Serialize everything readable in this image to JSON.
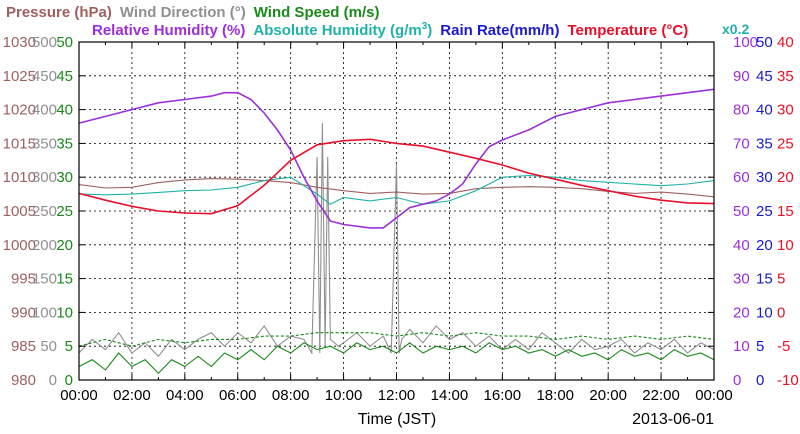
{
  "header": {
    "row1": [
      {
        "text": "Pressure (hPa)",
        "color": "#a06060"
      },
      {
        "text": "Wind Direction (°)",
        "color": "#909090"
      },
      {
        "text": "Wind Speed (m/s)",
        "color": "#1a8a1a"
      }
    ],
    "row2": [
      {
        "text": "Relative Humidity (%)",
        "color": "#9b30d9"
      },
      {
        "text": "Absolute Humidity (g/m",
        "sup": "3",
        "tail": ")",
        "color": "#20b2aa"
      },
      {
        "text": "Rain Rate(mm/h)",
        "color": "#1a1ad0"
      },
      {
        "text": "Temperature (°C)",
        "color": "#e8102a"
      }
    ],
    "scale_note": {
      "text": "x0.2",
      "color": "#20b2aa"
    }
  },
  "footer": {
    "xlabel": "Time (JST)",
    "date": "2013-06-01"
  },
  "chart_data": {
    "type": "line",
    "x_ticks": [
      "00:00",
      "02:00",
      "04:00",
      "06:00",
      "08:00",
      "10:00",
      "12:00",
      "14:00",
      "16:00",
      "18:00",
      "20:00",
      "22:00",
      "00:00"
    ],
    "xlim_hours": [
      0,
      24
    ],
    "grid": true,
    "axes": {
      "pressure": {
        "ticks": [
          "1030",
          "1025",
          "1020",
          "1015",
          "1010",
          "1005",
          "1000",
          "995",
          "990",
          "985",
          "980"
        ],
        "ylim": [
          980,
          1030
        ],
        "color": "#a06060"
      },
      "wind_direction": {
        "ticks": [
          "500",
          "450",
          "400",
          "350",
          "300",
          "250",
          "200",
          "150",
          "100",
          "50",
          "0"
        ],
        "ylim": [
          0,
          500
        ],
        "color": "#909090"
      },
      "wind_speed": {
        "ticks": [
          "50",
          "45",
          "40",
          "35",
          "30",
          "25",
          "20",
          "15",
          "10",
          "5",
          "0"
        ],
        "ylim": [
          0,
          50
        ],
        "color": "#1a8a1a"
      },
      "relative_humidity": {
        "ticks": [
          "100",
          "90",
          "80",
          "70",
          "60",
          "50",
          "40",
          "30",
          "20",
          "10",
          "0"
        ],
        "ylim": [
          0,
          100
        ],
        "color": "#9b30d9"
      },
      "rain_rate": {
        "ticks": [
          "50",
          "45",
          "40",
          "35",
          "30",
          "25",
          "20",
          "15",
          "10",
          "5",
          "0"
        ],
        "ylim": [
          0,
          50
        ],
        "color": "#1a1ad0"
      },
      "temperature": {
        "ticks": [
          "40",
          "35",
          "30",
          "25",
          "20",
          "15",
          "10",
          "5",
          "0",
          "-5",
          "-10"
        ],
        "ylim": [
          -10,
          40
        ],
        "color": "#e8102a"
      }
    },
    "series": [
      {
        "name": "Temperature (°C)",
        "color": "#e8102a",
        "x": [
          0,
          1,
          2,
          3,
          4,
          5,
          6,
          7,
          8,
          9,
          10,
          11,
          12,
          13,
          14,
          15,
          16,
          17,
          18,
          19,
          20,
          21,
          22,
          23,
          24
        ],
        "y": [
          17.6,
          16.6,
          15.7,
          15.0,
          14.7,
          14.6,
          15.8,
          18.8,
          22.5,
          24.8,
          25.4,
          25.6,
          25.0,
          24.6,
          23.7,
          22.8,
          21.8,
          20.6,
          19.7,
          18.8,
          18.0,
          17.2,
          16.6,
          16.2,
          16.1
        ]
      },
      {
        "name": "Relative Humidity (%)",
        "color": "#9b30d9",
        "x": [
          0,
          1,
          2,
          3,
          4,
          5,
          5.5,
          6,
          6.5,
          7,
          7.5,
          8,
          8.5,
          9,
          9.5,
          10,
          11,
          11.5,
          12,
          12.5,
          13,
          13.5,
          14,
          14.5,
          15,
          15.5,
          16,
          17,
          18,
          19,
          20,
          21,
          22,
          23,
          24
        ],
        "y": [
          76,
          78,
          80,
          82,
          83,
          84,
          85,
          85,
          83,
          79,
          74,
          68,
          60,
          53,
          47,
          46,
          45,
          45,
          48,
          51,
          52,
          53,
          55,
          58,
          64,
          69,
          71,
          74,
          78,
          80,
          82,
          83,
          84,
          85,
          86
        ]
      },
      {
        "name": "Absolute Humidity (g/m3) x0.2",
        "color": "#20b2aa",
        "x": [
          0,
          1,
          2,
          3,
          4,
          5,
          6,
          7,
          8,
          9,
          9.5,
          10,
          11,
          12,
          13,
          14,
          15,
          16,
          17,
          18,
          19,
          20,
          21,
          22,
          23,
          24
        ],
        "y": [
          55,
          54.8,
          55,
          55.5,
          56,
          56.2,
          57,
          59,
          60,
          55,
          52,
          54,
          53,
          54,
          52,
          53,
          56,
          60,
          60.5,
          60,
          59,
          58.5,
          58,
          57.5,
          58,
          59
        ]
      },
      {
        "name": "Pressure (hPa)",
        "color": "#a06060",
        "x": [
          0,
          1,
          2,
          3,
          4,
          5,
          6,
          7,
          8,
          9,
          10,
          11,
          12,
          13,
          14,
          15,
          16,
          17,
          18,
          19,
          20,
          21,
          22,
          23,
          24
        ],
        "y": [
          1008.9,
          1008.4,
          1008.5,
          1009.2,
          1009.6,
          1009.8,
          1009.7,
          1009.5,
          1009.2,
          1008.5,
          1008.0,
          1007.6,
          1007.8,
          1007.5,
          1007.6,
          1008.3,
          1008.5,
          1008.6,
          1008.5,
          1008.3,
          1007.9,
          1007.6,
          1007.8,
          1007.5,
          1007.1
        ]
      },
      {
        "name": "Wind Direction (°)",
        "color": "#909090",
        "x": [
          0,
          0.5,
          1,
          1.5,
          2,
          2.5,
          3,
          3.5,
          4,
          4.5,
          5,
          5.5,
          6,
          6.5,
          7,
          7.5,
          8,
          8.5,
          8.8,
          9,
          9.1,
          9.2,
          9.3,
          9.4,
          9.5,
          9.8,
          10,
          10.5,
          11,
          11.5,
          11.8,
          12,
          12.1,
          12.2,
          12.5,
          13,
          13.5,
          14,
          14.5,
          15,
          15.5,
          16,
          16.5,
          17,
          17.5,
          18,
          18.5,
          19,
          19.5,
          20,
          20.5,
          21,
          21.5,
          22,
          22.5,
          23,
          23.5,
          24
        ],
        "y": [
          40,
          60,
          45,
          70,
          40,
          55,
          35,
          60,
          45,
          60,
          70,
          50,
          70,
          55,
          80,
          50,
          65,
          60,
          40,
          330,
          40,
          380,
          50,
          330,
          60,
          50,
          55,
          70,
          50,
          65,
          40,
          320,
          40,
          60,
          75,
          55,
          80,
          60,
          70,
          50,
          65,
          45,
          60,
          45,
          70,
          55,
          40,
          60,
          45,
          50,
          60,
          40,
          55,
          45,
          60,
          40,
          55,
          45
        ]
      },
      {
        "name": "Wind Speed (m/s)",
        "color": "#1a8a1a",
        "x": [
          0,
          0.5,
          1,
          1.5,
          2,
          2.5,
          3,
          3.5,
          4,
          4.5,
          5,
          5.5,
          6,
          6.5,
          7,
          7.5,
          8,
          8.5,
          9,
          9.5,
          10,
          10.5,
          11,
          11.5,
          12,
          12.5,
          13,
          13.5,
          14,
          14.5,
          15,
          15.5,
          16,
          16.5,
          17,
          17.5,
          18,
          18.5,
          19,
          19.5,
          20,
          20.5,
          21,
          21.5,
          22,
          22.5,
          23,
          23.5,
          24
        ],
        "y": [
          2,
          3,
          1.5,
          4,
          2,
          3,
          1,
          3,
          2,
          3.5,
          2,
          4,
          3,
          4.5,
          3,
          5,
          4,
          5.5,
          4.5,
          5,
          4,
          5.5,
          4.5,
          5,
          4,
          5.5,
          4,
          5,
          4.5,
          5,
          4,
          5.5,
          4.5,
          5,
          4,
          4.5,
          3.5,
          4.5,
          3.5,
          4,
          3,
          4.5,
          3.5,
          4,
          3,
          4.5,
          3.5,
          4,
          3
        ]
      },
      {
        "name": "Wind Speed gust (m/s)",
        "color": "#1a8a1a",
        "x": [
          0,
          1,
          2,
          3,
          4,
          5,
          6,
          7,
          8,
          9,
          10,
          11,
          12,
          13,
          14,
          15,
          16,
          17,
          18,
          19,
          20,
          21,
          22,
          23,
          24
        ],
        "y": [
          5,
          6,
          5,
          6,
          5.5,
          6,
          6,
          6.5,
          6.5,
          7,
          7,
          7,
          6.5,
          7,
          6.5,
          7,
          6.5,
          6.5,
          6,
          6.5,
          6,
          6.5,
          6,
          6.5,
          6
        ]
      },
      {
        "name": "Rain Rate(mm/h)",
        "color": "#1a1ad0",
        "x": [
          0,
          24
        ],
        "y": [
          0,
          0
        ]
      }
    ]
  }
}
